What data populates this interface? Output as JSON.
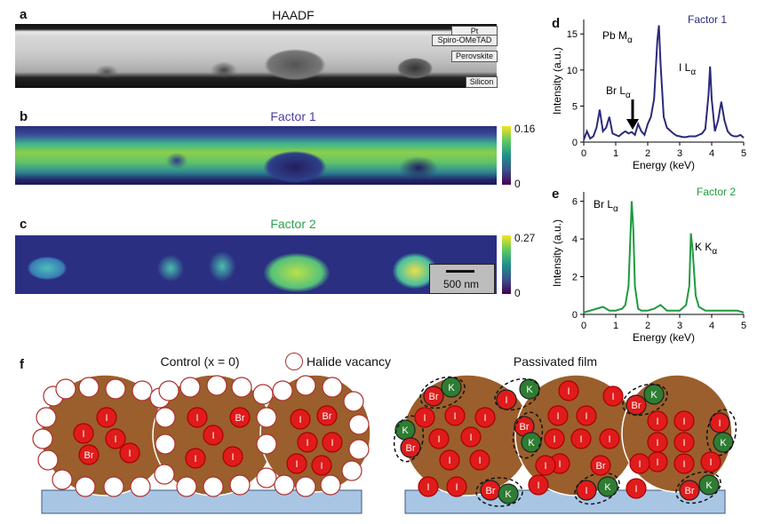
{
  "panels": {
    "a": {
      "label": "a",
      "title": "HAADF",
      "layers": [
        "Pt",
        "Spiro-OMeTAD",
        "Perovskite",
        "Silicon"
      ]
    },
    "b": {
      "label": "b",
      "title": "Factor 1",
      "cbar_max": "0.16",
      "cbar_min": "0",
      "title_color": "#4b3f9a"
    },
    "c": {
      "label": "c",
      "title": "Factor 2",
      "cbar_max": "0.27",
      "cbar_min": "0",
      "scalebar": "500 nm",
      "title_color": "#2e9e4e"
    },
    "f": {
      "label": "f",
      "control_title": "Control (x = 0)",
      "legend": "Halide vacancy",
      "passivated_title": "Passivated film"
    }
  },
  "chart_data": [
    {
      "panel": "d",
      "type": "line",
      "title": "Factor 1",
      "xlabel": "Energy (keV)",
      "ylabel": "Intensity (a.u.)",
      "xlim": [
        0,
        5
      ],
      "ylim": [
        0,
        17
      ],
      "xticks": [
        0,
        1,
        2,
        3,
        4,
        5
      ],
      "yticks": [
        0,
        5,
        10,
        15
      ],
      "color": "#2b2a7a",
      "annotations": [
        "Pb Mα",
        "I Lα",
        "Br Lα"
      ],
      "x": [
        0.0,
        0.1,
        0.2,
        0.3,
        0.4,
        0.5,
        0.6,
        0.7,
        0.8,
        0.9,
        1.0,
        1.1,
        1.2,
        1.3,
        1.4,
        1.5,
        1.6,
        1.7,
        1.8,
        1.9,
        2.0,
        2.1,
        2.2,
        2.3,
        2.35,
        2.4,
        2.5,
        2.6,
        2.7,
        2.8,
        2.9,
        3.0,
        3.1,
        3.2,
        3.3,
        3.4,
        3.5,
        3.6,
        3.7,
        3.8,
        3.9,
        3.95,
        4.0,
        4.1,
        4.2,
        4.3,
        4.4,
        4.5,
        4.6,
        4.7,
        4.8,
        4.9,
        5.0
      ],
      "y": [
        0.3,
        1.5,
        0.5,
        0.8,
        2.0,
        4.5,
        1.5,
        2.0,
        3.5,
        1.2,
        1.0,
        0.8,
        1.2,
        1.5,
        1.2,
        1.4,
        1.0,
        2.5,
        1.5,
        1.0,
        2.5,
        3.5,
        6.0,
        14.0,
        16.2,
        11.0,
        3.5,
        2.0,
        1.6,
        1.2,
        0.9,
        0.8,
        0.7,
        0.7,
        0.8,
        0.8,
        0.8,
        1.0,
        1.2,
        1.8,
        6.5,
        10.5,
        6.0,
        1.5,
        3.0,
        5.6,
        3.0,
        1.5,
        1.0,
        0.8,
        0.8,
        1.0,
        0.6
      ]
    },
    {
      "panel": "e",
      "type": "line",
      "title": "Factor 2",
      "xlabel": "Energy (keV)",
      "ylabel": "Intensity (a.u.)",
      "xlim": [
        0,
        5
      ],
      "ylim": [
        0,
        6.5
      ],
      "xticks": [
        0,
        1,
        2,
        3,
        4,
        5
      ],
      "yticks": [
        0,
        2,
        4,
        6
      ],
      "color": "#1f9a3f",
      "annotations": [
        "Br Lα",
        "K Kα"
      ],
      "x": [
        0.0,
        0.2,
        0.4,
        0.6,
        0.8,
        1.0,
        1.2,
        1.3,
        1.4,
        1.5,
        1.55,
        1.6,
        1.7,
        1.8,
        2.0,
        2.2,
        2.4,
        2.6,
        2.8,
        3.0,
        3.2,
        3.3,
        3.35,
        3.4,
        3.5,
        3.6,
        3.8,
        4.0,
        4.2,
        4.4,
        4.6,
        4.8,
        5.0
      ],
      "y": [
        0.1,
        0.2,
        0.3,
        0.4,
        0.2,
        0.2,
        0.3,
        0.5,
        1.5,
        6.0,
        4.5,
        1.5,
        0.3,
        0.2,
        0.2,
        0.3,
        0.5,
        0.2,
        0.2,
        0.2,
        0.5,
        1.5,
        4.3,
        3.5,
        1.0,
        0.4,
        0.2,
        0.2,
        0.2,
        0.2,
        0.2,
        0.2,
        0.1
      ]
    }
  ]
}
